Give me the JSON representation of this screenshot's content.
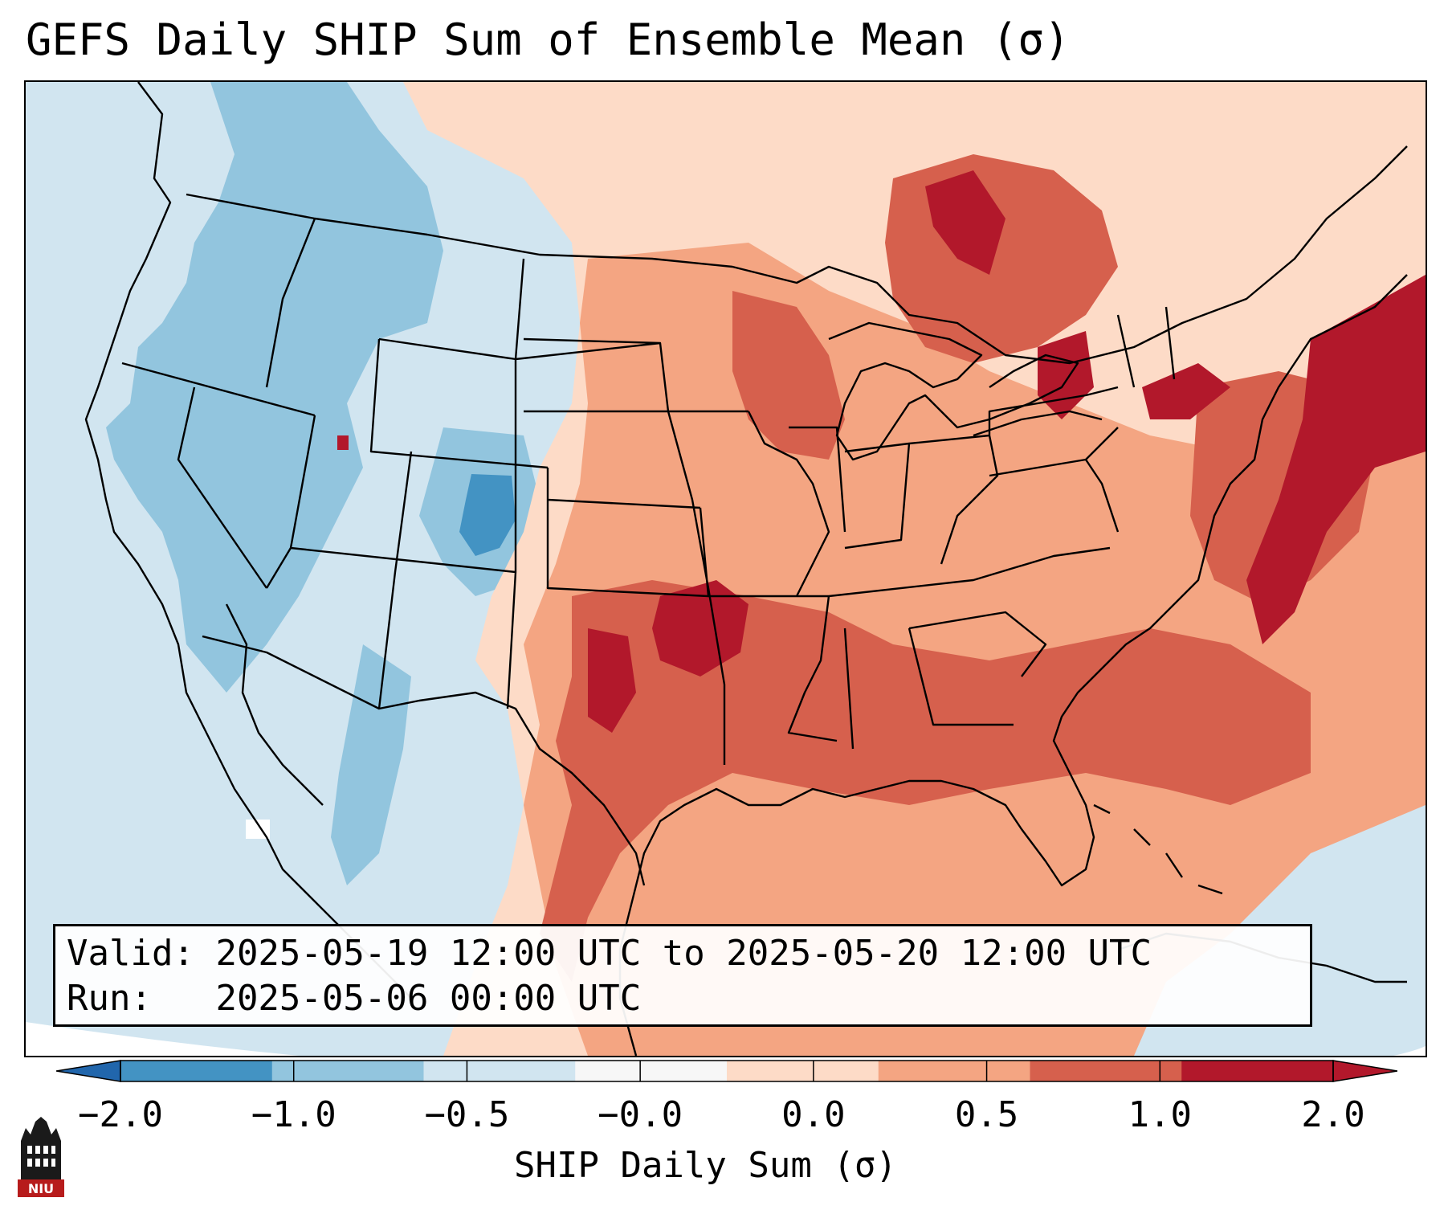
{
  "title": "GEFS Daily SHIP Sum of Ensemble Mean (σ)",
  "info": {
    "valid_label": "Valid:",
    "valid_value": "2025-05-19 12:00 UTC to 2025-05-20 12:00 UTC",
    "run_label": "Run:",
    "run_value": "2025-05-06 00:00 UTC"
  },
  "colorbar": {
    "title": "SHIP Daily Sum (σ)",
    "ticks": [
      "−2.0",
      "−1.0",
      "−0.5",
      "−0.0",
      "0.0",
      "0.5",
      "1.0",
      "2.0"
    ],
    "colors": [
      "#4393c3",
      "#92c5de",
      "#d1e5f0",
      "#f7f7f7",
      "#fddbc7",
      "#f4a582",
      "#d6604d",
      "#b2182b"
    ],
    "extend": "both"
  },
  "logo": {
    "text": "NIU",
    "colors": [
      "#b71c1c",
      "#1a1a1a"
    ]
  },
  "map": {
    "projection": "Lambert conformal (CONUS)",
    "background_color": "#d1e5f0",
    "boundaries": [
      "coastlines",
      "US states",
      "Canada provinces",
      "Mexico border"
    ]
  }
}
